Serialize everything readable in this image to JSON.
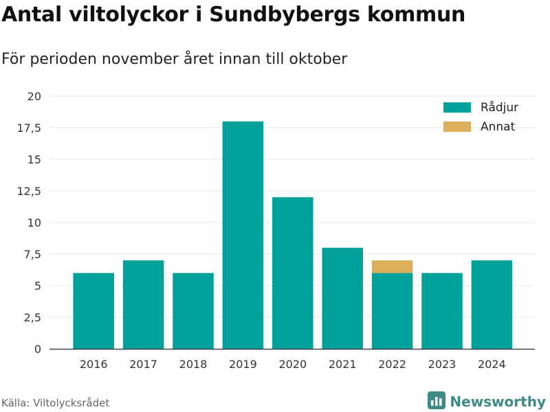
{
  "header": {
    "title": "Antal viltolyckor i Sundbybergs kommun",
    "subtitle": "För perioden november året innan till oktober"
  },
  "footer": {
    "source": "Källa: Viltolycksrådet",
    "brand": "Newsworthy",
    "brand_icon": "bar-chart-logo-icon"
  },
  "colors": {
    "radjur": "#00a19a",
    "annat": "#dcaf5a",
    "grid": "#e3e3e3",
    "brand": "#3f8a86"
  },
  "chart_data": {
    "type": "bar",
    "stacked": true,
    "categories": [
      "2016",
      "2017",
      "2018",
      "2019",
      "2020",
      "2021",
      "2022",
      "2023",
      "2024"
    ],
    "series": [
      {
        "name": "Rådjur",
        "values": [
          6,
          7,
          6,
          18,
          12,
          8,
          6,
          6,
          7
        ]
      },
      {
        "name": "Annat",
        "values": [
          0,
          0,
          0,
          0,
          0,
          0,
          1,
          0,
          0
        ]
      }
    ],
    "ylim": [
      0,
      20
    ],
    "yticks": [
      "0",
      "2,5",
      "5",
      "7,5",
      "10",
      "12,5",
      "15",
      "17,5",
      "20"
    ],
    "ytick_values": [
      0,
      2.5,
      5,
      7.5,
      10,
      12.5,
      15,
      17.5,
      20
    ],
    "grid": true,
    "legend": "top-right"
  }
}
